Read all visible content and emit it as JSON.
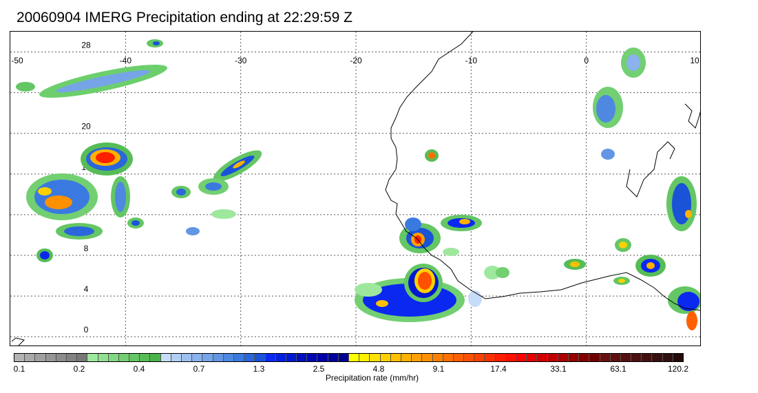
{
  "title": "20060904 IMERG Precipitation ending at 22:29:59 Z",
  "map": {
    "lon_range": [
      -50,
      10
    ],
    "lat_range": [
      -1,
      30
    ],
    "lon_ticks": [
      "-50",
      "-40",
      "-30",
      "-20",
      "-10",
      "0",
      "10"
    ],
    "lat_ticks": [
      "28",
      "24",
      "20",
      "16",
      "12",
      "8",
      "4",
      "0"
    ],
    "grid": true,
    "coastline_color": "#000000"
  },
  "colorbar": {
    "colors": [
      "#b4b4b4",
      "#aaaaaa",
      "#a0a0a0",
      "#969696",
      "#8c8c8c",
      "#828282",
      "#787878",
      "#9ee89e",
      "#8fe08f",
      "#80d880",
      "#72cf72",
      "#64c664",
      "#56bd56",
      "#48b448",
      "#c6dcf8",
      "#b2ceF4",
      "#9ec0f0",
      "#8ab2ec",
      "#76a4e8",
      "#6296e4",
      "#4e88e0",
      "#3a7ae0",
      "#2a66dc",
      "#1a52d8",
      "#0a28f0",
      "#0020e0",
      "#0018d0",
      "#0010c0",
      "#0008b4",
      "#0000a8",
      "#00009c",
      "#000090",
      "#ffff00",
      "#fff000",
      "#ffe000",
      "#ffd000",
      "#ffc000",
      "#ffb000",
      "#ffa000",
      "#ff9000",
      "#ff8000",
      "#ff7000",
      "#ff6000",
      "#ff5000",
      "#ff4000",
      "#ff3000",
      "#ff2000",
      "#ff1000",
      "#ff0000",
      "#e80000",
      "#d40000",
      "#c00000",
      "#ac0000",
      "#980000",
      "#840000",
      "#700000",
      "#6a1010",
      "#601010",
      "#561010",
      "#4c1010",
      "#421010",
      "#381010",
      "#2e1010",
      "#240a0a"
    ],
    "labels": [
      "0.1",
      "0.2",
      "0.4",
      "0.7",
      "1.3",
      "2.5",
      "4.8",
      "9.1",
      "17.4",
      "33.1",
      "63.1",
      "120.2"
    ],
    "title": "Precipitation rate (mm/hr)"
  }
}
